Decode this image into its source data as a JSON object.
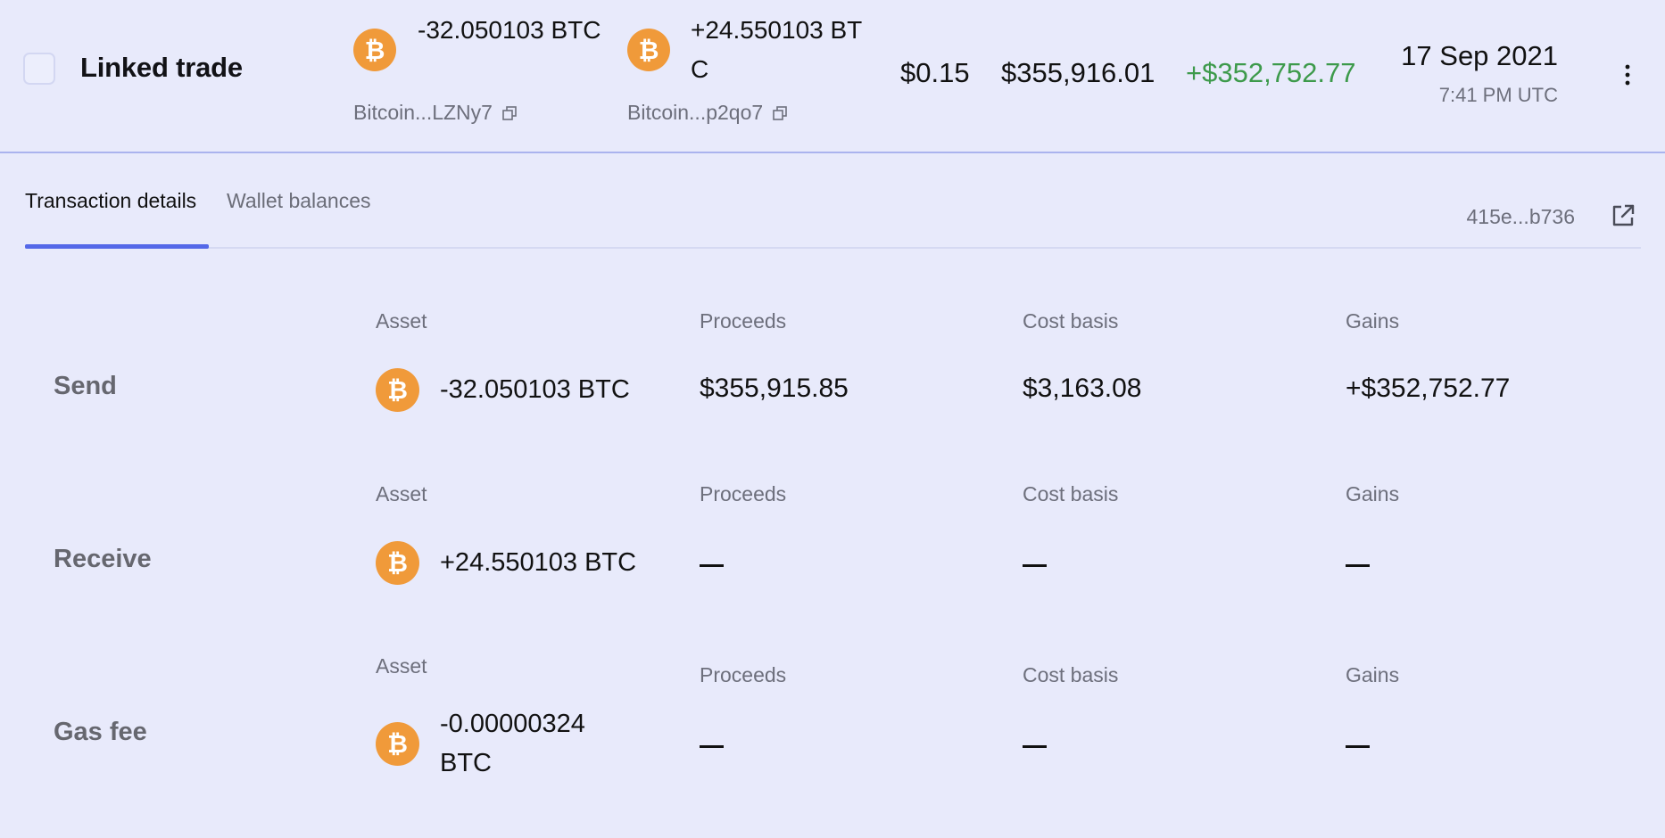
{
  "header": {
    "title": "Linked trade",
    "sent": {
      "amount": "-32.050103 BTC",
      "wallet": "Bitcoin...LZNy7"
    },
    "received": {
      "amount": "+24.550103 BTC",
      "wallet": "Bitcoin...p2qo7"
    },
    "fee": "$0.15",
    "value": "$355,916.01",
    "gain": "+$352,752.77",
    "date": "17 Sep 2021",
    "time": "7:41 PM UTC"
  },
  "tabs": [
    {
      "label": "Transaction details",
      "active": true
    },
    {
      "label": "Wallet balances",
      "active": false
    }
  ],
  "tx_hash": "415e...b736",
  "columns": {
    "asset": "Asset",
    "proceeds": "Proceeds",
    "cost_basis": "Cost basis",
    "gains": "Gains"
  },
  "rows": [
    {
      "label": "Send",
      "asset": "-32.050103 BTC",
      "proceeds": "$355,915.85",
      "cost_basis": "$3,163.08",
      "gains": "+$352,752.77"
    },
    {
      "label": "Receive",
      "asset": "+24.550103 BTC",
      "proceeds": null,
      "cost_basis": null,
      "gains": null
    },
    {
      "label": "Gas fee",
      "asset": "-0.00000324 BTC",
      "proceeds": null,
      "cost_basis": null,
      "gains": null
    }
  ],
  "icons": {
    "asset": "bitcoin-icon",
    "copy": "copy-icon",
    "external": "external-link-icon",
    "menu": "more-vertical-icon"
  },
  "colors": {
    "background": "#e8eafb",
    "bitcoin": "#f09a3a",
    "gain_green": "#3d9a4b",
    "tab_accent": "#5468e8"
  }
}
